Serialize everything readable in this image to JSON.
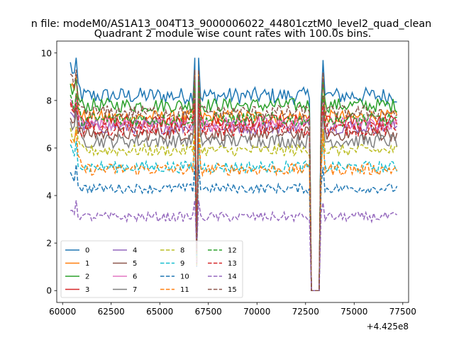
{
  "figure": {
    "suptitle": "n file: modeM0/AS1A13_004T13_9000006022_44801cztM0_level2_quad_clean",
    "title": "Quadrant 2 module wise count rates with 100.0s bins.",
    "offset_label": "+4.425e8"
  },
  "chart_data": {
    "type": "line",
    "title": "Quadrant 2 module wise count rates with 100.0s bins.",
    "xlabel": "",
    "ylabel": "",
    "x_offset": 442500000,
    "xlim": [
      59700,
      77800
    ],
    "ylim": [
      -0.5,
      10.5
    ],
    "xticks": [
      60000,
      62500,
      65000,
      67500,
      70000,
      72500,
      75000,
      77500
    ],
    "xtick_labels": [
      "60000",
      "62500",
      "65000",
      "67500",
      "70000",
      "72500",
      "75000",
      "77500"
    ],
    "yticks": [
      0,
      2,
      4,
      6,
      8,
      10
    ],
    "ytick_labels": [
      "0",
      "2",
      "4",
      "6",
      "8",
      "10"
    ],
    "x_range": [
      60400,
      77200
    ],
    "bin_width": 100,
    "gaps": [
      [
        72800,
        73200
      ]
    ],
    "dips": [
      {
        "x": 66900,
        "to": 1.0
      }
    ],
    "grid": false,
    "legend_position": "lower-left",
    "legend_columns": 4,
    "series": [
      {
        "name": "0",
        "color": "#1f77b4",
        "dash": "solid",
        "level": 8.2,
        "noise": 0.35,
        "start": 9.5
      },
      {
        "name": "1",
        "color": "#ff7f0e",
        "dash": "solid",
        "level": 7.3,
        "noise": 0.3,
        "start": 8.8
      },
      {
        "name": "2",
        "color": "#2ca02c",
        "dash": "solid",
        "level": 7.8,
        "noise": 0.3,
        "start": 8.6
      },
      {
        "name": "3",
        "color": "#d62728",
        "dash": "solid",
        "level": 7.1,
        "noise": 0.3,
        "start": 8.0
      },
      {
        "name": "4",
        "color": "#9467bd",
        "dash": "solid",
        "level": 6.9,
        "noise": 0.3,
        "start": 7.6
      },
      {
        "name": "5",
        "color": "#8c564b",
        "dash": "solid",
        "level": 6.6,
        "noise": 0.3,
        "start": 7.4
      },
      {
        "name": "6",
        "color": "#e377c2",
        "dash": "solid",
        "level": 7.0,
        "noise": 0.3,
        "start": 7.8
      },
      {
        "name": "7",
        "color": "#7f7f7f",
        "dash": "solid",
        "level": 6.3,
        "noise": 0.3,
        "start": 7.2
      },
      {
        "name": "8",
        "color": "#bcbd22",
        "dash": "dashed",
        "level": 5.9,
        "noise": 0.25,
        "start": 6.6
      },
      {
        "name": "9",
        "color": "#17becf",
        "dash": "dashed",
        "level": 5.2,
        "noise": 0.25,
        "start": 6.0
      },
      {
        "name": "10",
        "color": "#1f77b4",
        "dash": "dashed",
        "level": 4.3,
        "noise": 0.2,
        "start": 5.0
      },
      {
        "name": "11",
        "color": "#ff7f0e",
        "dash": "dashed",
        "level": 5.1,
        "noise": 0.25,
        "start": 6.5
      },
      {
        "name": "12",
        "color": "#2ca02c",
        "dash": "dashed",
        "level": 7.2,
        "noise": 0.3,
        "start": 8.0
      },
      {
        "name": "13",
        "color": "#d62728",
        "dash": "dashed",
        "level": 6.8,
        "noise": 0.3,
        "start": 7.6
      },
      {
        "name": "14",
        "color": "#9467bd",
        "dash": "dashed",
        "level": 3.1,
        "noise": 0.2,
        "start": 3.5
      },
      {
        "name": "15",
        "color": "#8c564b",
        "dash": "dashed",
        "level": 7.5,
        "noise": 0.3,
        "start": 9.0
      }
    ]
  }
}
